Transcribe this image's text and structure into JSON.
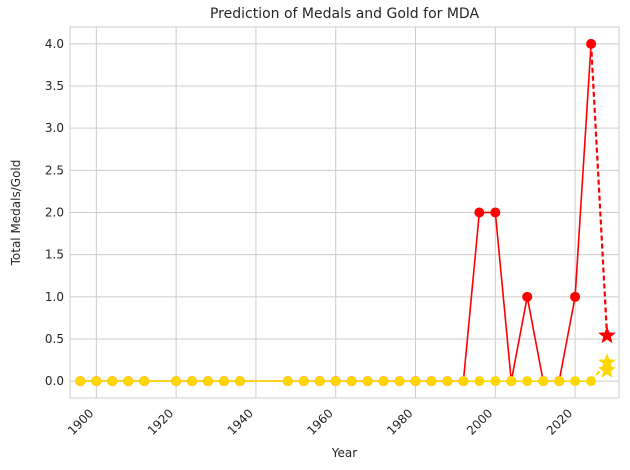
{
  "chart_data": {
    "type": "line",
    "title": "Prediction of Medals and Gold for MDA",
    "xlabel": "Year",
    "ylabel": "Total Medals/Gold",
    "xlim": [
      1893.4,
      2031.0
    ],
    "ylim": [
      -0.2,
      4.2
    ],
    "xticks": [
      1900,
      1920,
      1940,
      1960,
      1980,
      2000,
      2020
    ],
    "yticks": [
      0.0,
      0.5,
      1.0,
      1.5,
      2.0,
      2.5,
      3.0,
      3.5,
      4.0
    ],
    "grid": true,
    "legend": "none",
    "series": [
      {
        "color": "#ff0000",
        "marker": "circle",
        "x": [
          1896,
          1900,
          1904,
          1908,
          1912,
          1920,
          1924,
          1928,
          1932,
          1936,
          1948,
          1952,
          1956,
          1960,
          1964,
          1968,
          1972,
          1976,
          1980,
          1984,
          1988,
          1992,
          1996,
          2000,
          2004,
          2008,
          2012,
          2016,
          2020,
          2024
        ],
        "y": [
          0,
          0,
          0,
          0,
          0,
          0,
          0,
          0,
          0,
          0,
          0,
          0,
          0,
          0,
          0,
          0,
          0,
          0,
          0,
          0,
          0,
          0,
          2,
          2,
          0,
          1,
          0,
          0,
          1,
          4
        ]
      },
      {
        "color": "#ffd700",
        "marker": "circle",
        "x": [
          1896,
          1900,
          1904,
          1908,
          1912,
          1920,
          1924,
          1928,
          1932,
          1936,
          1948,
          1952,
          1956,
          1960,
          1964,
          1968,
          1972,
          1976,
          1980,
          1984,
          1988,
          1992,
          1996,
          2000,
          2004,
          2008,
          2012,
          2016,
          2020,
          2024
        ],
        "y": [
          0,
          0,
          0,
          0,
          0,
          0,
          0,
          0,
          0,
          0,
          0,
          0,
          0,
          0,
          0,
          0,
          0,
          0,
          0,
          0,
          0,
          0,
          0,
          0,
          0,
          0,
          0,
          0,
          0,
          0
        ]
      }
    ],
    "predictions": [
      {
        "color": "#ff0000",
        "marker": "star",
        "line": "dashed",
        "from": [
          2024,
          4
        ],
        "to": [
          2028,
          0.54
        ]
      },
      {
        "color": "#ffd700",
        "marker": "star",
        "line": "dashed",
        "from": [
          2024,
          0
        ],
        "to": [
          2028,
          0.22
        ]
      },
      {
        "color": "#ffd700",
        "marker": "star",
        "line": "none",
        "from": null,
        "to": [
          2028,
          0.13
        ]
      }
    ]
  }
}
